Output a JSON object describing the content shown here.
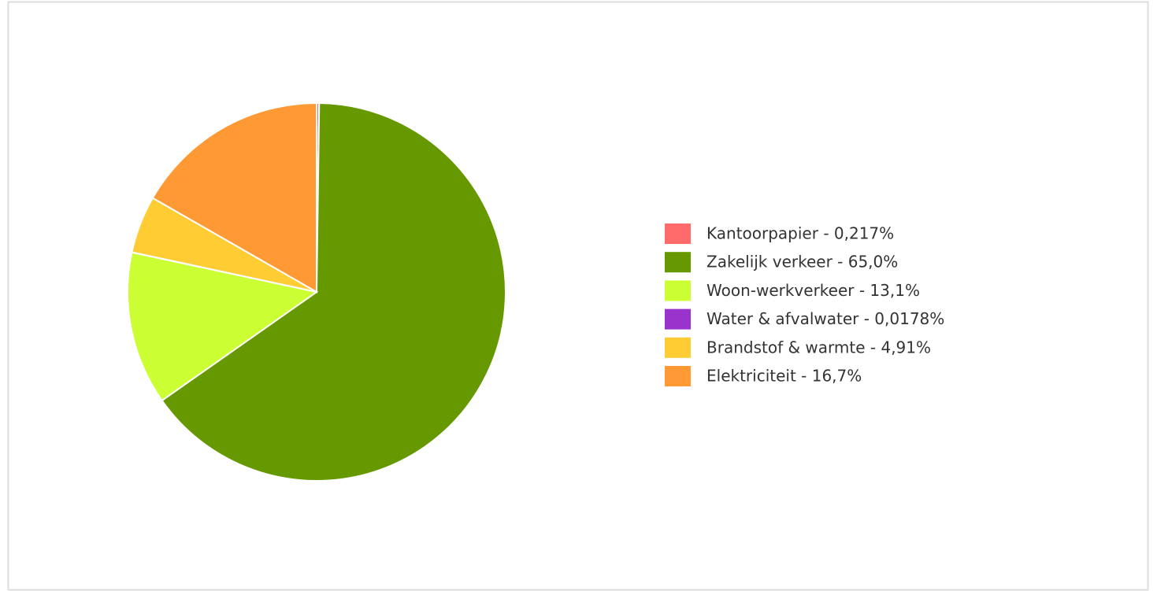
{
  "chart_data": {
    "type": "pie",
    "categories": [
      "Kantoorpapier - 0,217%",
      "Zakelijk verkeer - 65,0%",
      "Woon-werkverkeer - 13,1%",
      "Water & afvalwater - 0,0178%",
      "Brandstof & warmte - 4,91%",
      "Elektriciteit - 16,7%"
    ],
    "values": [
      0.217,
      65.0,
      13.1,
      0.0178,
      4.91,
      16.7
    ],
    "colors": [
      "#ff6b6b",
      "#669900",
      "#ccff33",
      "#9933cc",
      "#ffcc33",
      "#ff9933"
    ],
    "legend": "right"
  }
}
